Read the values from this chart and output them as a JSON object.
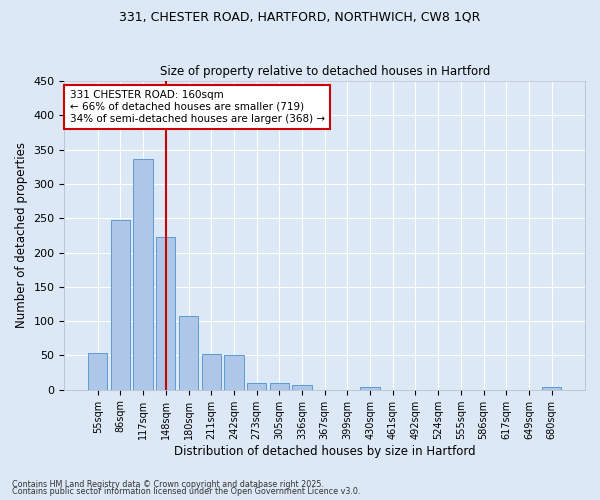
{
  "title1": "331, CHESTER ROAD, HARTFORD, NORTHWICH, CW8 1QR",
  "title2": "Size of property relative to detached houses in Hartford",
  "xlabel": "Distribution of detached houses by size in Hartford",
  "ylabel": "Number of detached properties",
  "categories": [
    "55sqm",
    "86sqm",
    "117sqm",
    "148sqm",
    "180sqm",
    "211sqm",
    "242sqm",
    "273sqm",
    "305sqm",
    "336sqm",
    "367sqm",
    "399sqm",
    "430sqm",
    "461sqm",
    "492sqm",
    "524sqm",
    "555sqm",
    "586sqm",
    "617sqm",
    "649sqm",
    "680sqm"
  ],
  "values": [
    53,
    247,
    336,
    222,
    107,
    52,
    50,
    10,
    10,
    7,
    0,
    0,
    4,
    0,
    0,
    0,
    0,
    0,
    0,
    0,
    4
  ],
  "bar_color": "#aec6e8",
  "bar_edgecolor": "#5b9bd5",
  "vline_x": 3,
  "vline_color": "#cc0000",
  "annotation_text": "331 CHESTER ROAD: 160sqm\n← 66% of detached houses are smaller (719)\n34% of semi-detached houses are larger (368) →",
  "annotation_box_color": "#ffffff",
  "annotation_box_edgecolor": "#cc0000",
  "footer1": "Contains HM Land Registry data © Crown copyright and database right 2025.",
  "footer2": "Contains public sector information licensed under the Open Government Licence v3.0.",
  "bg_color": "#dce8f5",
  "plot_bg_color": "#dce8f5",
  "grid_color": "#ffffff",
  "ylim": [
    0,
    450
  ],
  "yticks": [
    0,
    50,
    100,
    150,
    200,
    250,
    300,
    350,
    400,
    450
  ]
}
